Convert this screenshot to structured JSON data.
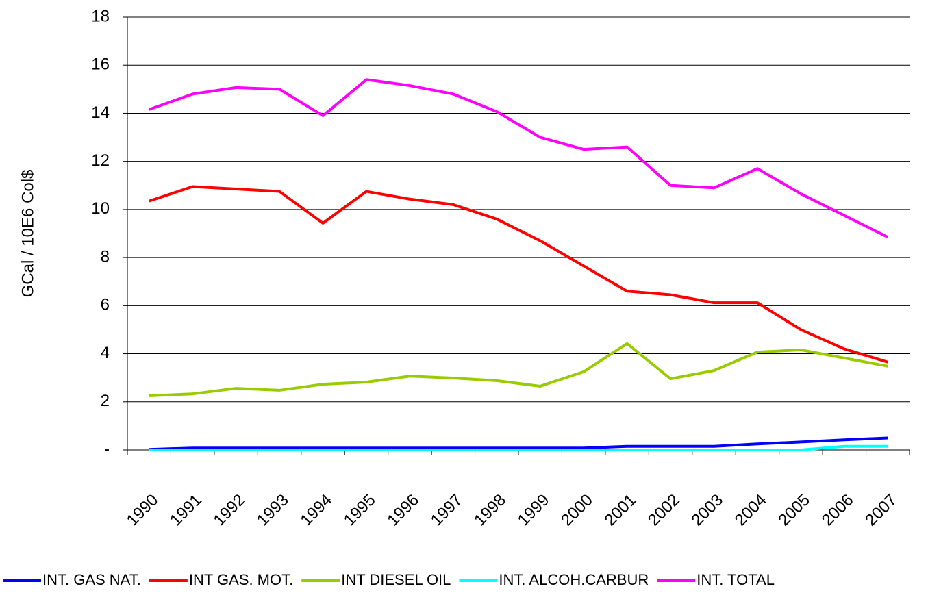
{
  "chart_data": {
    "type": "line",
    "y_label": "GCal / 10E6 Col$",
    "categories": [
      "1990",
      "1991",
      "1992",
      "1993",
      "1994",
      "1995",
      "1996",
      "1997",
      "1998",
      "1999",
      "2000",
      "2001",
      "2002",
      "2003",
      "2004",
      "2005",
      "2006",
      "2007"
    ],
    "ylim": [
      0,
      18
    ],
    "yticks": [
      {
        "value": 0,
        "label": "-"
      },
      2,
      4,
      6,
      8,
      10,
      12,
      14,
      16,
      18
    ],
    "grid": true,
    "legend": "bottom",
    "series": [
      {
        "name": "INT. GAS NAT.",
        "color": "#0000ff",
        "values": [
          0.02,
          0.08,
          0.08,
          0.08,
          0.08,
          0.08,
          0.08,
          0.08,
          0.08,
          0.08,
          0.08,
          0.15,
          0.15,
          0.15,
          0.25,
          0.33,
          0.42,
          0.5
        ]
      },
      {
        "name": "INT GAS. MOT.",
        "color": "#ff0000",
        "values": [
          10.35,
          10.95,
          10.85,
          10.75,
          9.43,
          10.75,
          10.43,
          10.2,
          9.6,
          8.7,
          7.65,
          6.6,
          6.45,
          6.12,
          6.12,
          5.0,
          4.2,
          3.65
        ]
      },
      {
        "name": "INT DIESEL OIL",
        "color": "#99cc00",
        "values": [
          2.25,
          2.33,
          2.56,
          2.48,
          2.73,
          2.82,
          3.07,
          2.99,
          2.88,
          2.65,
          3.25,
          4.42,
          2.96,
          3.3,
          4.07,
          4.16,
          3.82,
          3.48
        ]
      },
      {
        "name": "INT. ALCOH.CARBUR",
        "color": "#00ffff",
        "values": [
          0,
          0,
          0,
          0,
          0,
          0,
          0,
          0,
          0,
          0,
          0,
          0,
          0,
          0,
          0,
          0,
          0.15,
          0.15
        ]
      },
      {
        "name": "INT. TOTAL",
        "color": "#ff00ff",
        "values": [
          14.16,
          14.8,
          15.07,
          15.0,
          13.9,
          15.4,
          15.15,
          14.8,
          14.07,
          13.0,
          12.5,
          12.6,
          11.0,
          10.9,
          11.7,
          10.65,
          9.75,
          8.85
        ]
      }
    ]
  }
}
